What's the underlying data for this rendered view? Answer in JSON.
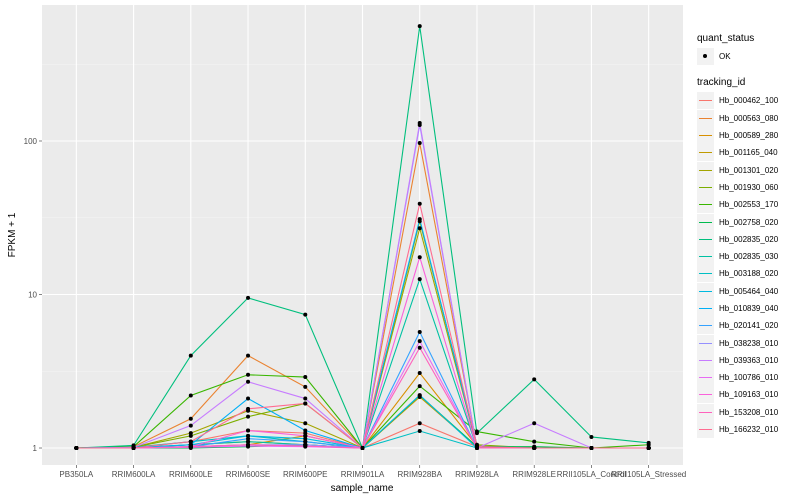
{
  "chart_data": {
    "type": "line",
    "title": "",
    "xlabel": "sample_name",
    "ylabel": "FPKM + 1",
    "yscale": "log10",
    "ylim": [
      0.775,
      769
    ],
    "yticks": [
      1,
      10,
      100
    ],
    "ytick_labels": [
      "1",
      "10",
      "100"
    ],
    "grid": true,
    "legend_position": "right",
    "categories": [
      "PB350LA",
      "RRIM600LA",
      "RRIM600LE",
      "RRIM600SE",
      "RRIM600PE",
      "RRIM901LA",
      "RRIM928BA",
      "RRIM928LA",
      "RRIM928LE",
      "RRII105LA_Control",
      "RRII105LA_Stressed"
    ],
    "point_legend": {
      "title": "quant_status",
      "entries": [
        "OK"
      ]
    },
    "series_legend_title": "tracking_id",
    "series": [
      {
        "name": "Hb_000462_100",
        "color": "#F8766D",
        "values": [
          1,
          1.01,
          1.1,
          1.3,
          1.25,
          1,
          1.45,
          1.02,
          1,
          1,
          1
        ]
      },
      {
        "name": "Hb_000563_080",
        "color": "#EA8331",
        "values": [
          1,
          1.02,
          1.55,
          4.0,
          2.5,
          1,
          97,
          1.02,
          1,
          1,
          1
        ]
      },
      {
        "name": "Hb_000589_280",
        "color": "#D89000",
        "values": [
          1,
          1,
          1.02,
          1.05,
          1.2,
          1,
          3.08,
          1.03,
          1,
          1,
          1
        ]
      },
      {
        "name": "Hb_001165_040",
        "color": "#C09B00",
        "values": [
          1,
          1,
          1.05,
          1.1,
          1.05,
          1,
          2.15,
          1.02,
          1,
          1,
          1
        ]
      },
      {
        "name": "Hb_001301_020",
        "color": "#A3A500",
        "values": [
          1,
          1.01,
          1.25,
          1.75,
          1.45,
          1,
          27,
          1.02,
          1,
          1,
          1
        ]
      },
      {
        "name": "Hb_001930_060",
        "color": "#7CAE00",
        "values": [
          1,
          1.01,
          1.2,
          1.6,
          1.95,
          1,
          30,
          1.05,
          1,
          1,
          1
        ]
      },
      {
        "name": "Hb_002553_170",
        "color": "#39B600",
        "values": [
          1,
          1.02,
          2.2,
          3.0,
          2.9,
          1,
          2.53,
          1.28,
          1.1,
          1,
          1.05
        ]
      },
      {
        "name": "Hb_002758_020",
        "color": "#00BB4E",
        "values": [
          1,
          1,
          1.0,
          1.02,
          1.05,
          1,
          2.2,
          1.02,
          1.02,
          1,
          1
        ]
      },
      {
        "name": "Hb_002835_020",
        "color": "#00BF7D",
        "values": [
          1,
          1.04,
          4.0,
          9.5,
          7.4,
          1,
          560,
          1.25,
          2.8,
          1.18,
          1.08
        ]
      },
      {
        "name": "Hb_002835_030",
        "color": "#00C1A3",
        "values": [
          1,
          1.01,
          1.05,
          1.1,
          1.05,
          1,
          12.6,
          1,
          1,
          1,
          1
        ]
      },
      {
        "name": "Hb_003188_020",
        "color": "#00BFC4",
        "values": [
          1,
          1.01,
          1.1,
          1.2,
          1.1,
          1,
          1.29,
          1,
          1,
          1,
          1
        ]
      },
      {
        "name": "Hb_005464_040",
        "color": "#00BAE0",
        "values": [
          1,
          1,
          1.05,
          1.2,
          1.15,
          1,
          2.21,
          1,
          1,
          1,
          1
        ]
      },
      {
        "name": "Hb_010839_040",
        "color": "#00B0F6",
        "values": [
          1,
          1,
          1.05,
          2.1,
          1.3,
          1,
          31,
          1.02,
          1,
          1,
          1
        ]
      },
      {
        "name": "Hb_020141_020",
        "color": "#35A2FF",
        "values": [
          1,
          1,
          1.02,
          1.15,
          1.1,
          1,
          5.7,
          1,
          1,
          1,
          1
        ]
      },
      {
        "name": "Hb_038238_010",
        "color": "#9590FF",
        "values": [
          1,
          1,
          1.02,
          1.05,
          1.05,
          1,
          127,
          1,
          1,
          1,
          1
        ]
      },
      {
        "name": "Hb_039363_010",
        "color": "#C77CFF",
        "values": [
          1,
          1.01,
          1.4,
          2.7,
          2.1,
          1,
          131,
          1,
          1.45,
          1,
          1
        ]
      },
      {
        "name": "Hb_100786_010",
        "color": "#E76BF3",
        "values": [
          1,
          1,
          1.01,
          1.03,
          1.02,
          1,
          4.97,
          1,
          1,
          1,
          1
        ]
      },
      {
        "name": "Hb_109163_010",
        "color": "#FA62DB",
        "values": [
          1,
          1,
          1.02,
          1.3,
          1.2,
          1,
          17.5,
          1,
          1,
          1,
          1
        ]
      },
      {
        "name": "Hb_153208_010",
        "color": "#FF62BC",
        "values": [
          1,
          1,
          1.02,
          1.05,
          1.03,
          1,
          4.5,
          1,
          1,
          1,
          1
        ]
      },
      {
        "name": "Hb_166232_010",
        "color": "#FF6C91",
        "values": [
          1,
          1,
          1.1,
          1.8,
          1.95,
          1,
          39,
          1.02,
          1,
          1,
          1
        ]
      }
    ]
  }
}
